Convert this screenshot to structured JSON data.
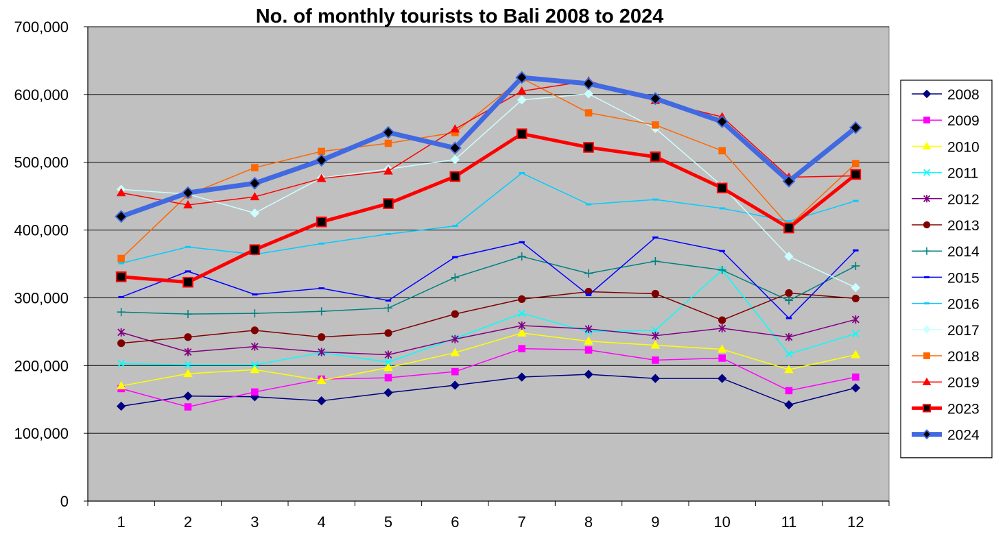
{
  "chart_data": {
    "type": "line",
    "title": "No. of monthly tourists to Bali 2008 to 2024",
    "xlabel": "",
    "ylabel": "",
    "categories": [
      "1",
      "2",
      "3",
      "4",
      "5",
      "6",
      "7",
      "8",
      "9",
      "10",
      "11",
      "12"
    ],
    "ylim": [
      0,
      700000
    ],
    "y_ticks": [
      0,
      100000,
      200000,
      300000,
      400000,
      500000,
      600000,
      700000
    ],
    "y_tick_labels": [
      "0",
      "100,000",
      "200,000",
      "300,000",
      "400,000",
      "500,000",
      "600,000",
      "700,000"
    ],
    "grid": true,
    "plot_background": "#c0c0c0",
    "legend_position": "right",
    "series": [
      {
        "name": "2008",
        "color": "#000080",
        "marker": "diamond",
        "thick": false,
        "values": [
          140000,
          155000,
          154000,
          148000,
          160000,
          171000,
          183000,
          187000,
          181000,
          181000,
          142000,
          167000
        ]
      },
      {
        "name": "2009",
        "color": "#ff00ff",
        "marker": "square",
        "thick": false,
        "values": [
          166000,
          139000,
          161000,
          180000,
          182000,
          191000,
          225000,
          223000,
          208000,
          211000,
          163000,
          183000
        ]
      },
      {
        "name": "2010",
        "color": "#ffff00",
        "marker": "triangle",
        "thick": false,
        "values": [
          170000,
          188000,
          194000,
          178000,
          197000,
          219000,
          248000,
          236000,
          230000,
          224000,
          194000,
          216000
        ]
      },
      {
        "name": "2011",
        "color": "#00ffff",
        "marker": "x",
        "thick": false,
        "values": [
          203000,
          201000,
          201000,
          219000,
          205000,
          240000,
          277000,
          250000,
          252000,
          341000,
          217000,
          247000
        ]
      },
      {
        "name": "2012",
        "color": "#800080",
        "marker": "star",
        "thick": false,
        "values": [
          249000,
          220000,
          228000,
          220000,
          216000,
          239000,
          259000,
          254000,
          244000,
          255000,
          242000,
          268000
        ]
      },
      {
        "name": "2013",
        "color": "#800000",
        "marker": "circle",
        "thick": false,
        "values": [
          233000,
          242000,
          252000,
          242000,
          248000,
          276000,
          298000,
          309000,
          306000,
          267000,
          307000,
          299000
        ]
      },
      {
        "name": "2014",
        "color": "#008080",
        "marker": "plus",
        "thick": false,
        "values": [
          279000,
          276000,
          277000,
          280000,
          285000,
          330000,
          361000,
          336000,
          354000,
          341000,
          296000,
          347000
        ]
      },
      {
        "name": "2015",
        "color": "#0000ff",
        "marker": "dash",
        "thick": false,
        "values": [
          301000,
          339000,
          305000,
          314000,
          296000,
          360000,
          382000,
          304000,
          389000,
          369000,
          270000,
          370000
        ]
      },
      {
        "name": "2016",
        "color": "#00ccff",
        "marker": "dash",
        "thick": false,
        "values": [
          351000,
          375000,
          364000,
          380000,
          394000,
          406000,
          484000,
          438000,
          445000,
          432000,
          413000,
          443000
        ]
      },
      {
        "name": "2017",
        "color": "#ccffff",
        "marker": "diamond",
        "thick": false,
        "values": [
          460000,
          453000,
          425000,
          477000,
          490000,
          504000,
          592000,
          601000,
          550000,
          465000,
          361000,
          315000
        ]
      },
      {
        "name": "2018",
        "color": "#ff6600",
        "marker": "square",
        "thick": false,
        "values": [
          358000,
          452000,
          492000,
          516000,
          528000,
          544000,
          624000,
          573000,
          555000,
          517000,
          406000,
          498000
        ]
      },
      {
        "name": "2019",
        "color": "#ff0000",
        "marker": "triangle",
        "thick": false,
        "values": [
          455000,
          437000,
          449000,
          476000,
          487000,
          549000,
          605000,
          620000,
          591000,
          567000,
          478000,
          480000
        ]
      },
      {
        "name": "2023",
        "color": "#ff0000",
        "marker": "square-black",
        "thick": true,
        "width": 5,
        "values": [
          331000,
          323000,
          371000,
          412000,
          439000,
          479000,
          542000,
          522000,
          508000,
          462000,
          403000,
          482000
        ]
      },
      {
        "name": "2024",
        "color": "#4169e1",
        "marker": "diamond-black",
        "thick": true,
        "width": 7,
        "values": [
          420000,
          455000,
          469000,
          503000,
          544000,
          521000,
          625000,
          616000,
          594000,
          560000,
          472000,
          551000
        ]
      }
    ]
  }
}
